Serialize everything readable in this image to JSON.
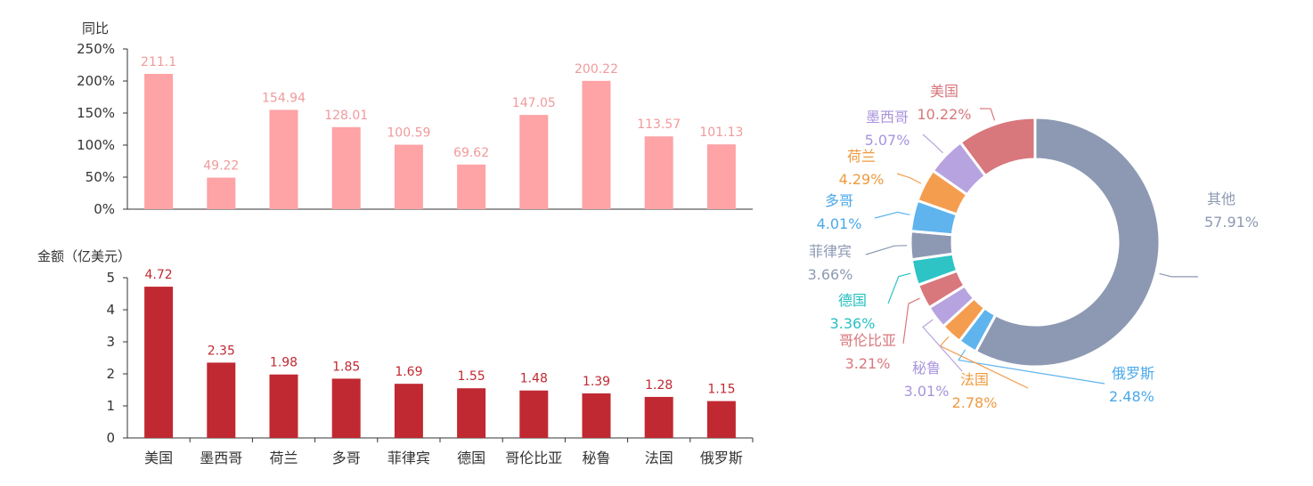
{
  "chart_data": [
    {
      "type": "bar",
      "ylabel": "同比",
      "ylim": [
        0,
        250
      ],
      "yticks": [
        "0%",
        "50%",
        "100%",
        "150%",
        "200%",
        "250%"
      ],
      "categories": [
        "美国",
        "墨西哥",
        "荷兰",
        "多哥",
        "菲律宾",
        "德国",
        "哥伦比亚",
        "秘鲁",
        "法国",
        "俄罗斯"
      ],
      "values": [
        211.1,
        49.22,
        154.94,
        128.01,
        100.59,
        69.62,
        147.05,
        200.22,
        113.57,
        101.13
      ],
      "value_labels": [
        "211.1",
        "49.22",
        "154.94",
        "128.01",
        "100.59",
        "69.62",
        "147.05",
        "200.22",
        "113.57",
        "101.13"
      ],
      "color": "#fea3a6",
      "label_color": "#f09a9c"
    },
    {
      "type": "bar",
      "ylabel": "金额（亿美元）",
      "ylim": [
        0,
        5
      ],
      "yticks": [
        "0",
        "1",
        "2",
        "3",
        "4",
        "5"
      ],
      "categories": [
        "美国",
        "墨西哥",
        "荷兰",
        "多哥",
        "菲律宾",
        "德国",
        "哥伦比亚",
        "秘鲁",
        "法国",
        "俄罗斯"
      ],
      "values": [
        4.72,
        2.35,
        1.98,
        1.85,
        1.69,
        1.55,
        1.48,
        1.39,
        1.28,
        1.15
      ],
      "value_labels": [
        "4.72",
        "2.35",
        "1.98",
        "1.85",
        "1.69",
        "1.55",
        "1.48",
        "1.39",
        "1.28",
        "1.15"
      ],
      "color": "#c02932",
      "label_color": "#c02932"
    },
    {
      "type": "pie",
      "slices": [
        {
          "label": "其他",
          "value": 57.91,
          "value_label": "57.91%",
          "color": "#8d99b3",
          "label_color": "#8d99b3"
        },
        {
          "label": "俄罗斯",
          "value": 2.48,
          "value_label": "2.48%",
          "color": "#5fb4ee",
          "label_color": "#4aa8ea"
        },
        {
          "label": "法国",
          "value": 2.78,
          "value_label": "2.78%",
          "color": "#f59d4f",
          "label_color": "#ef9a3e"
        },
        {
          "label": "秘鲁",
          "value": 3.01,
          "value_label": "3.01%",
          "color": "#b7a3e0",
          "label_color": "#a994dc"
        },
        {
          "label": "哥伦比亚",
          "value": 3.21,
          "value_label": "3.21%",
          "color": "#d8777c",
          "label_color": "#d8777c"
        },
        {
          "label": "德国",
          "value": 3.36,
          "value_label": "3.36%",
          "color": "#2ec4c6",
          "label_color": "#27c0c2"
        },
        {
          "label": "菲律宾",
          "value": 3.66,
          "value_label": "3.66%",
          "color": "#8d99b3",
          "label_color": "#8d99b3"
        },
        {
          "label": "多哥",
          "value": 4.01,
          "value_label": "4.01%",
          "color": "#5fb4ee",
          "label_color": "#4aa8ea"
        },
        {
          "label": "荷兰",
          "value": 4.29,
          "value_label": "4.29%",
          "color": "#f59d4f",
          "label_color": "#ef9a3e"
        },
        {
          "label": "墨西哥",
          "value": 5.07,
          "value_label": "5.07%",
          "color": "#b7a3e0",
          "label_color": "#a994dc"
        },
        {
          "label": "美国",
          "value": 10.22,
          "value_label": "10.22%",
          "color": "#d8777c",
          "label_color": "#d8777c"
        }
      ]
    }
  ]
}
